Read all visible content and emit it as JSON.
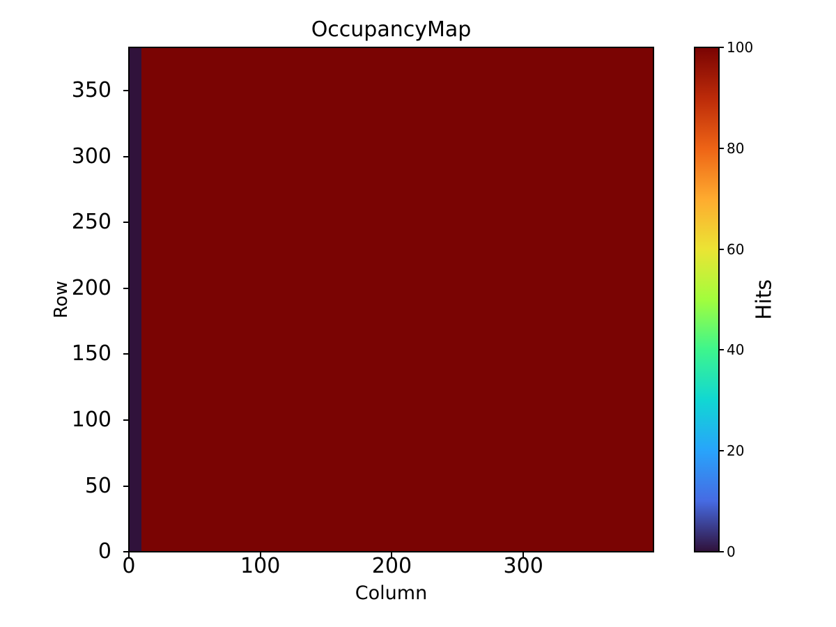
{
  "figure": {
    "background": "#ffffff"
  },
  "chart_data": {
    "type": "heatmap",
    "title": "OccupancyMap",
    "xlabel": "Column",
    "ylabel": "Row",
    "colorbar_label": "Hits",
    "colormap": "turbo",
    "n_cols": 400,
    "n_rows": 384,
    "xlim": [
      0,
      400
    ],
    "ylim": [
      0,
      384
    ],
    "clim": [
      0,
      100
    ],
    "x_tick_values": [
      0,
      100,
      200,
      300
    ],
    "y_tick_values": [
      0,
      50,
      100,
      150,
      200,
      250,
      300,
      350
    ],
    "colorbar_tick_values": [
      0,
      20,
      40,
      60,
      80,
      100
    ],
    "grid": false,
    "regions": [
      {
        "name": "low-hits-band",
        "col_start": 0,
        "col_end": 8,
        "row_start": 0,
        "row_end": 383,
        "hits": 0,
        "color": "#30123b"
      },
      {
        "name": "uniform-occupancy",
        "col_start": 9,
        "col_end": 399,
        "row_start": 0,
        "row_end": 383,
        "hits": 100,
        "color": "#7a0403"
      }
    ],
    "colorbar_gradient_stops": [
      "#30123b",
      "#466be3",
      "#28a4fb",
      "#11d7d3",
      "#3df58d",
      "#a2fd3d",
      "#ebe434",
      "#feab2f",
      "#ee6416",
      "#bc2b09",
      "#7a0403"
    ]
  }
}
